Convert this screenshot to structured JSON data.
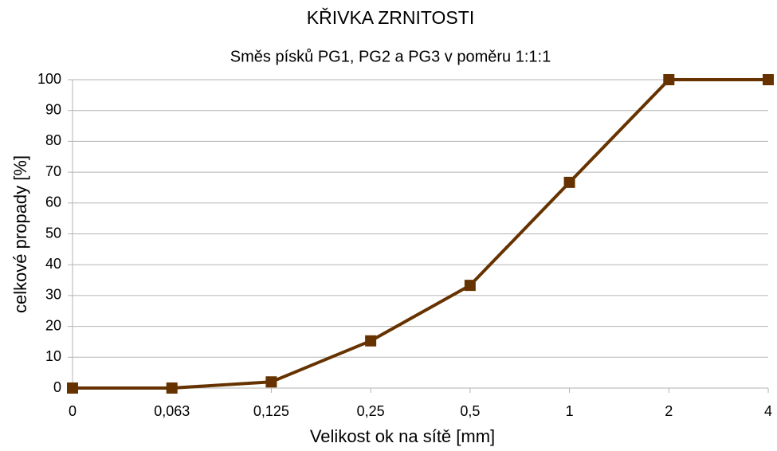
{
  "chart_data": {
    "type": "line",
    "title": "KŘIVKA ZRNITOSTI",
    "subtitle": "Směs písků PG1, PG2 a PG3 v poměru 1:1:1",
    "x_label": "Velikost ok na sítě [mm]",
    "y_label": "celkové propady [%]",
    "categories": [
      "0",
      "0,063",
      "0,125",
      "0,25",
      "0,5",
      "1",
      "2",
      "4"
    ],
    "values": [
      0,
      0,
      2,
      15.3,
      33.3,
      66.7,
      100,
      100
    ],
    "color": "#663300",
    "ylim": [
      0,
      100
    ],
    "yticks": [
      0,
      10,
      20,
      30,
      40,
      50,
      60,
      70,
      80,
      90,
      100
    ],
    "grid": true
  }
}
